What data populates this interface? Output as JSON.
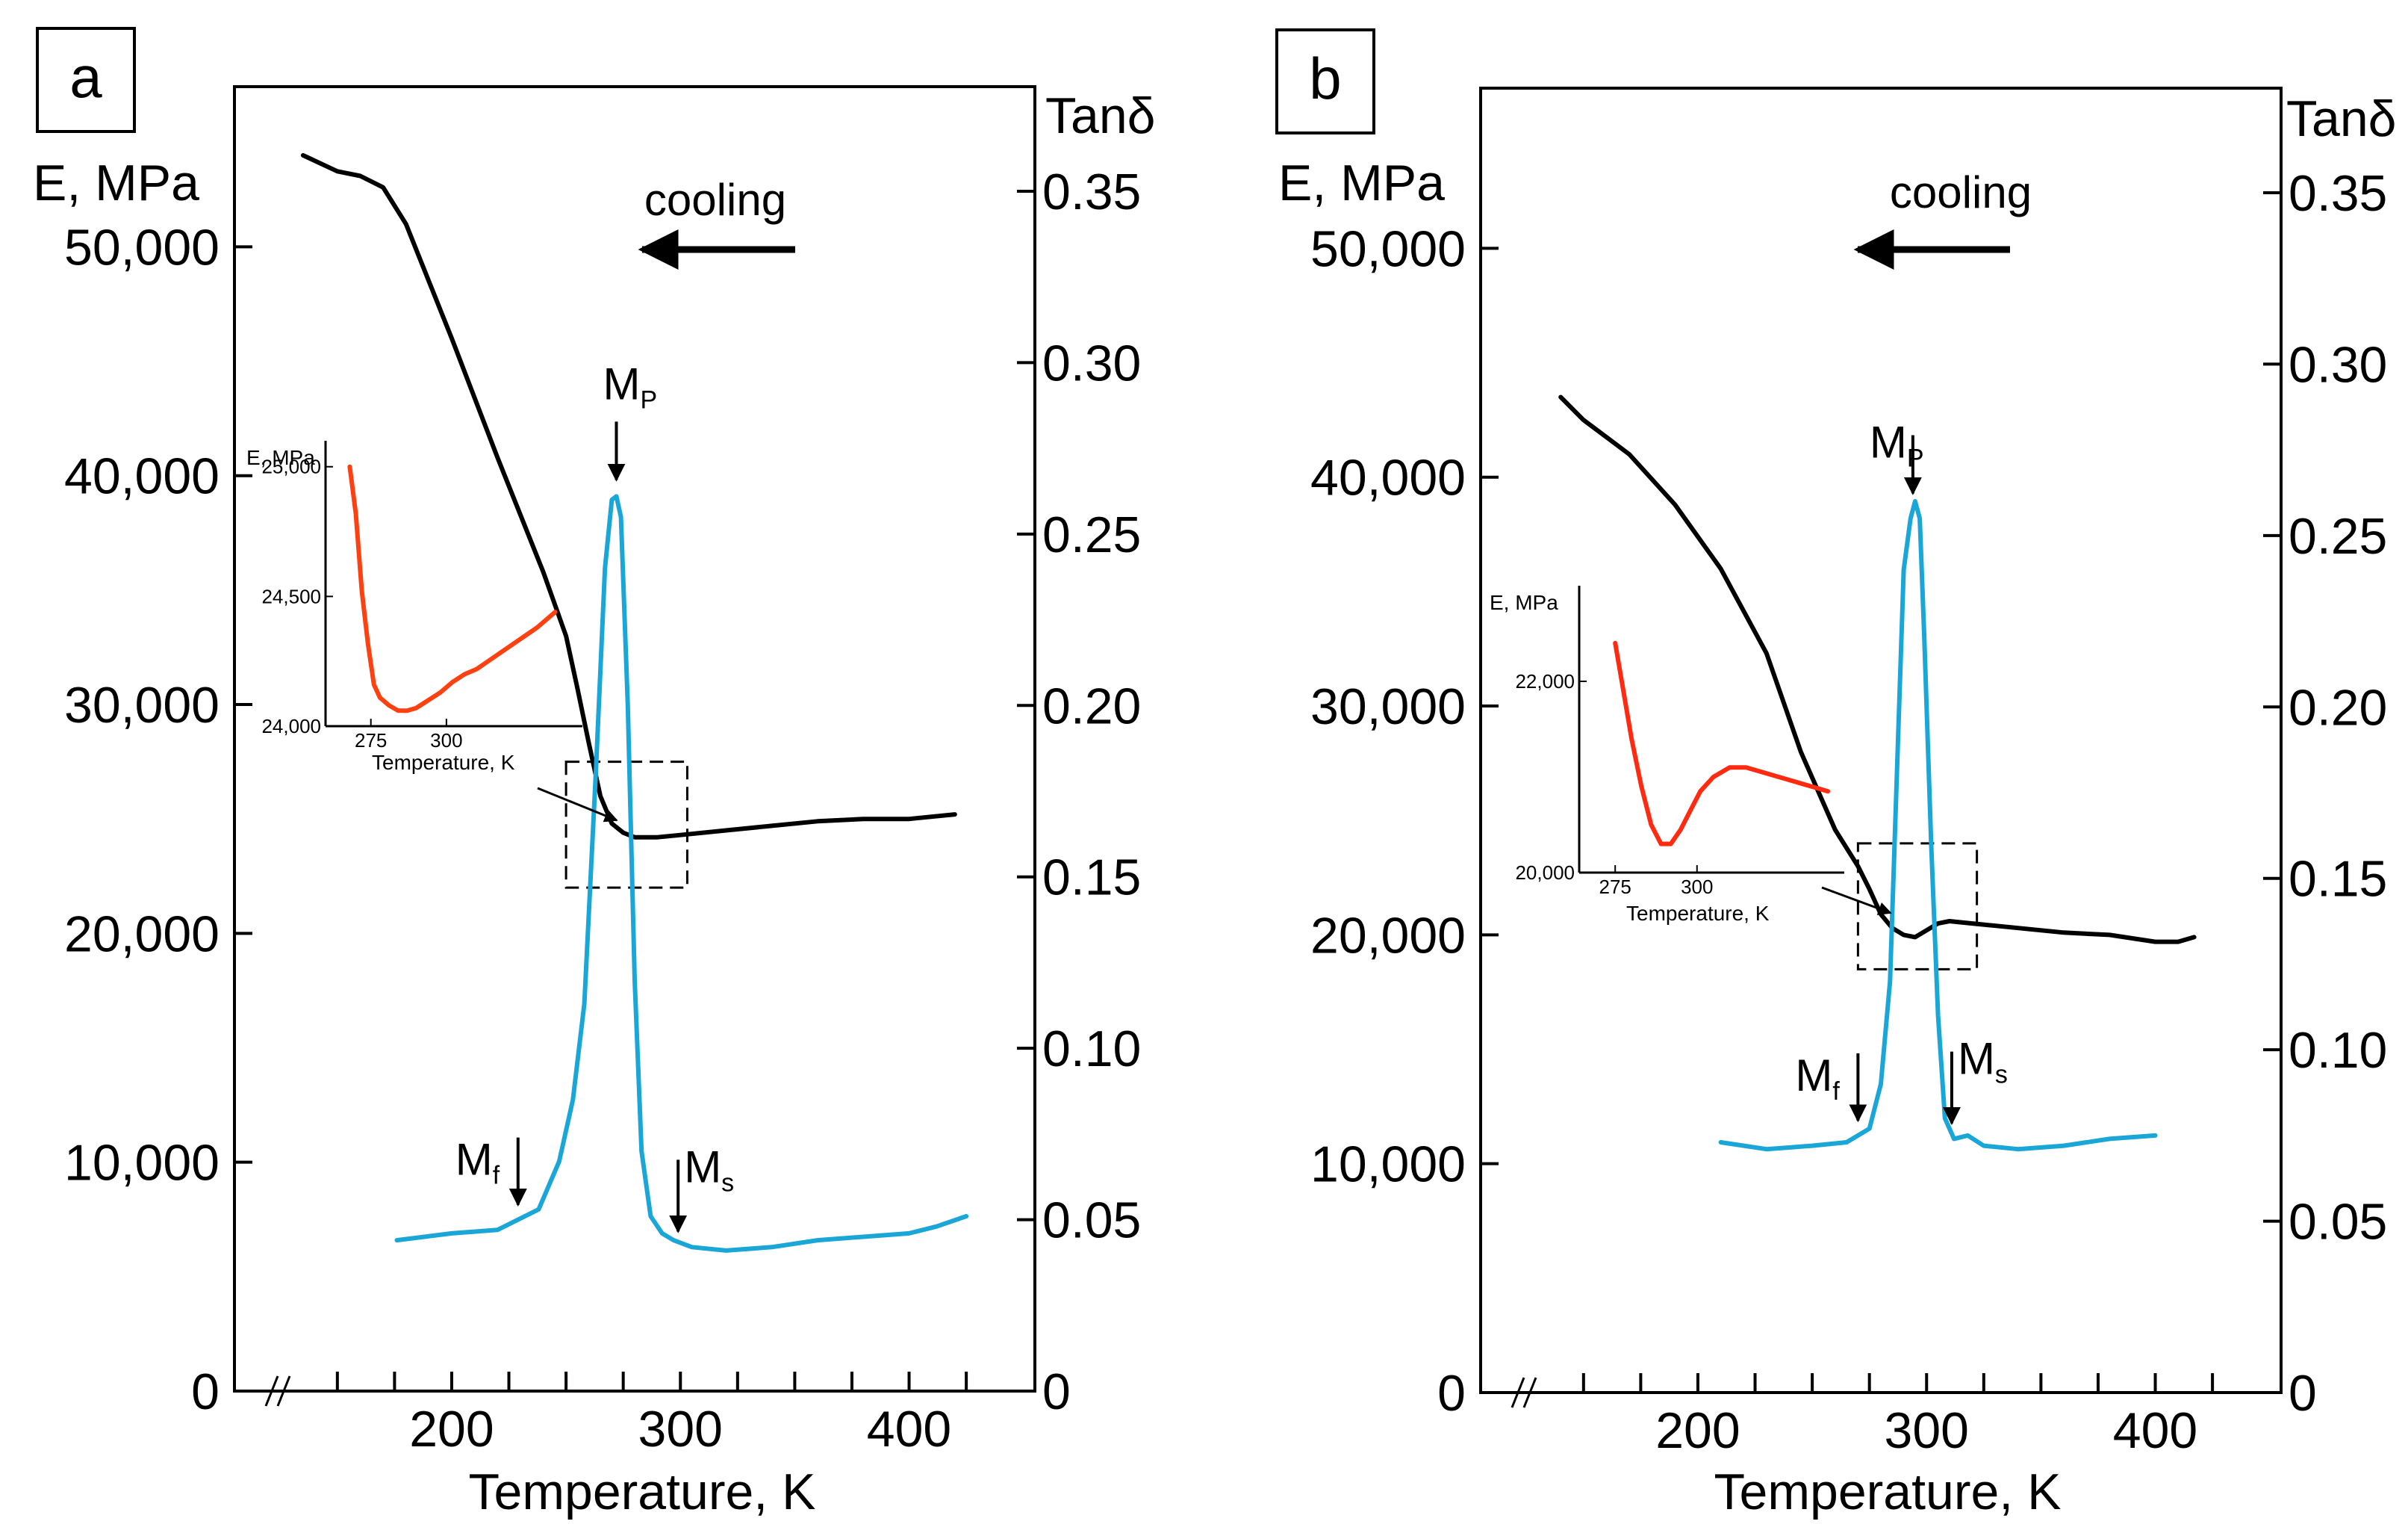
{
  "figure": {
    "panels": [
      {
        "label": "a",
        "left_axis_label": "E, MPa",
        "right_axis_label": "Tanδ",
        "x_axis_label": "Temperature, K",
        "cooling_label": "cooling",
        "annotations": {
          "mp_main": "M",
          "mp_sub": "P",
          "mf_main": "M",
          "mf_sub": "f",
          "ms_main": "M",
          "ms_sub": "s"
        },
        "inset": {
          "y_label": "E, MPa",
          "x_label": "Temperature, K",
          "x_ticks": [
            "275",
            "300"
          ],
          "y_ticks": [
            "24,000",
            "24,500",
            "25,000"
          ]
        }
      },
      {
        "label": "b",
        "left_axis_label": "E, MPa",
        "right_axis_label": "Tanδ",
        "x_axis_label": "Temperature, K",
        "cooling_label": "cooling",
        "annotations": {
          "mp_main": "M",
          "mp_sub": "P",
          "mf_main": "M",
          "mf_sub": "f",
          "ms_main": "M",
          "ms_sub": "s"
        },
        "inset": {
          "y_label": "E, MPa",
          "x_label": "Temperature, K",
          "x_ticks": [
            "275",
            "300"
          ],
          "y_ticks": [
            "20,000",
            "22,000"
          ]
        }
      }
    ]
  },
  "chart_data": [
    {
      "type": "line",
      "panel": "a",
      "xlabel": "Temperature, K",
      "ylabel": "E, MPa",
      "y2label": "Tanδ",
      "x_tick_labels": [
        "200",
        "300",
        "400"
      ],
      "y_tick_labels": [
        "0",
        "10,000",
        "20,000",
        "30,000",
        "40,000",
        "50,000"
      ],
      "y2_tick_labels": [
        "0",
        "0.05",
        "0.10",
        "0.15",
        "0.20",
        "0.25",
        "0.30",
        "0.35"
      ],
      "xlim": [
        105,
        455
      ],
      "ylim": [
        0,
        57000
      ],
      "y2lim": [
        0,
        0.35
      ],
      "series": [
        {
          "axis": "left",
          "color": "#000000",
          "x": [
            135,
            150,
            160,
            170,
            180,
            200,
            220,
            240,
            250,
            255,
            260,
            265,
            270,
            275,
            280,
            290,
            300,
            320,
            340,
            360,
            380,
            400,
            420
          ],
          "y": [
            54000,
            53300,
            53100,
            52600,
            51000,
            46000,
            40800,
            35800,
            33000,
            30700,
            28300,
            26000,
            24800,
            24400,
            24200,
            24200,
            24300,
            24500,
            24700,
            24900,
            25000,
            25000,
            25200
          ]
        },
        {
          "axis": "right",
          "color": "#1aa6d6",
          "x": [
            176,
            200,
            220,
            238,
            247,
            253,
            258,
            263,
            267,
            270,
            272,
            274,
            277,
            280,
            283,
            287,
            292,
            297,
            305,
            320,
            340,
            360,
            380,
            400,
            412,
            425
          ],
          "y": [
            0.044,
            0.046,
            0.047,
            0.053,
            0.067,
            0.085,
            0.113,
            0.18,
            0.24,
            0.26,
            0.261,
            0.255,
            0.2,
            0.12,
            0.07,
            0.051,
            0.046,
            0.044,
            0.042,
            0.041,
            0.042,
            0.044,
            0.045,
            0.046,
            0.048,
            0.051
          ]
        },
        {
          "axis": "inset",
          "color": "#ff4010",
          "x": [
            268,
            270,
            272,
            274,
            276,
            278,
            281,
            284,
            287,
            290,
            294,
            298,
            302,
            306,
            310,
            315,
            320,
            325,
            330,
            336
          ],
          "y": [
            25000,
            24820,
            24520,
            24320,
            24160,
            24110,
            24080,
            24060,
            24060,
            24070,
            24100,
            24130,
            24170,
            24200,
            24220,
            24260,
            24300,
            24340,
            24380,
            24440
          ]
        }
      ],
      "markers": {
        "Mp": 272,
        "Mf": 229,
        "Ms": 299
      },
      "inset_xlim": [
        260,
        345
      ],
      "inset_ylim": [
        24000,
        25100
      ],
      "zoom_box": {
        "x": [
          250,
          303
        ],
        "y": [
          22000,
          27500
        ]
      }
    },
    {
      "type": "line",
      "panel": "b",
      "xlabel": "Temperature, K",
      "ylabel": "E, MPa",
      "y2label": "Tanδ",
      "x_tick_labels": [
        "200",
        "300",
        "400"
      ],
      "y_tick_labels": [
        "0",
        "10,000",
        "20,000",
        "30,000",
        "40,000",
        "50,000"
      ],
      "y2_tick_labels": [
        "0",
        "0.05",
        "0.10",
        "0.15",
        "0.20",
        "0.25",
        "0.30",
        "0.35"
      ],
      "xlim": [
        105,
        455
      ],
      "ylim": [
        0,
        57000
      ],
      "y2lim": [
        0,
        0.35
      ],
      "series": [
        {
          "axis": "left",
          "color": "#000000",
          "x": [
            140,
            150,
            170,
            190,
            210,
            230,
            245,
            260,
            270,
            275,
            280,
            285,
            290,
            295,
            300,
            305,
            310,
            320,
            340,
            360,
            380,
            400,
            410,
            417
          ],
          "y": [
            43500,
            42500,
            41000,
            38800,
            36000,
            32300,
            28000,
            24600,
            23000,
            22000,
            20900,
            20300,
            20000,
            19900,
            20200,
            20500,
            20600,
            20500,
            20300,
            20100,
            20000,
            19700,
            19700,
            19900
          ]
        },
        {
          "axis": "right",
          "color": "#1aa6d6",
          "x": [
            210,
            230,
            250,
            265,
            275,
            280,
            284,
            287,
            290,
            293,
            295,
            297,
            299,
            302,
            305,
            308,
            312,
            318,
            325,
            340,
            360,
            380,
            400
          ],
          "y": [
            0.073,
            0.071,
            0.072,
            0.073,
            0.077,
            0.09,
            0.12,
            0.18,
            0.24,
            0.255,
            0.26,
            0.255,
            0.22,
            0.16,
            0.11,
            0.08,
            0.074,
            0.075,
            0.072,
            0.071,
            0.072,
            0.074,
            0.075
          ]
        },
        {
          "axis": "inset",
          "color": "#ff2a10",
          "x": [
            275,
            277,
            280,
            283,
            286,
            289,
            292,
            295,
            298,
            301,
            305,
            310,
            315,
            320,
            325,
            330,
            335,
            340
          ],
          "y": [
            22400,
            22000,
            21400,
            20900,
            20500,
            20300,
            20300,
            20450,
            20650,
            20850,
            21000,
            21100,
            21100,
            21050,
            21000,
            20950,
            20900,
            20850
          ]
        }
      ],
      "markers": {
        "Mp": 294,
        "Mf": 270,
        "Ms": 311
      },
      "inset_xlim": [
        264,
        345
      ],
      "inset_ylim": [
        20000,
        23000
      ],
      "zoom_box": {
        "x": [
          270,
          322
        ],
        "y": [
          18500,
          24000
        ]
      }
    }
  ]
}
